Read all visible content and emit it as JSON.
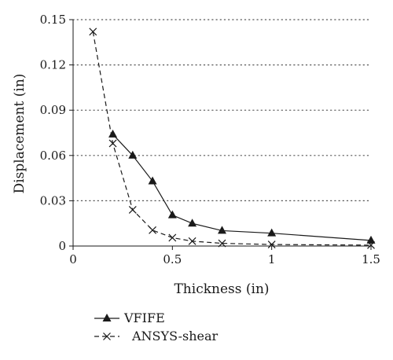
{
  "chart_data": {
    "type": "line",
    "title": "",
    "xlabel": "Thickness (in)",
    "ylabel": "Displacement (in)",
    "xlim": [
      0,
      1.5
    ],
    "ylim": [
      0,
      0.15
    ],
    "x_ticks": [
      0,
      0.5,
      1,
      1.5
    ],
    "x_tick_labels": [
      "0",
      "0.5",
      "1",
      "1.5"
    ],
    "y_ticks": [
      0,
      0.03,
      0.06,
      0.09,
      0.12,
      0.15
    ],
    "y_tick_labels": [
      "0",
      "0.03",
      "0.06",
      "0.09",
      "0.12",
      "0.15"
    ],
    "grid": "horizontal dotted",
    "legend_position": "bottom-left, below plot",
    "series": [
      {
        "name": "VFIFE",
        "style": "solid",
        "marker": "triangle",
        "color": "#1a1a1a",
        "x": [
          0.2,
          0.3,
          0.4,
          0.5,
          0.6,
          0.75,
          1.0,
          1.5
        ],
        "y": [
          0.074,
          0.06,
          0.043,
          0.0205,
          0.015,
          0.0102,
          0.0085,
          0.0037
        ]
      },
      {
        "name": "ANSYS-shear",
        "style": "dashed",
        "marker": "x",
        "color": "#1a1a1a",
        "x": [
          0.1,
          0.2,
          0.3,
          0.4,
          0.5,
          0.6,
          0.75,
          1.0,
          1.5
        ],
        "y": [
          0.142,
          0.068,
          0.024,
          0.0105,
          0.0055,
          0.0032,
          0.0018,
          0.001,
          0.0006
        ]
      }
    ]
  }
}
